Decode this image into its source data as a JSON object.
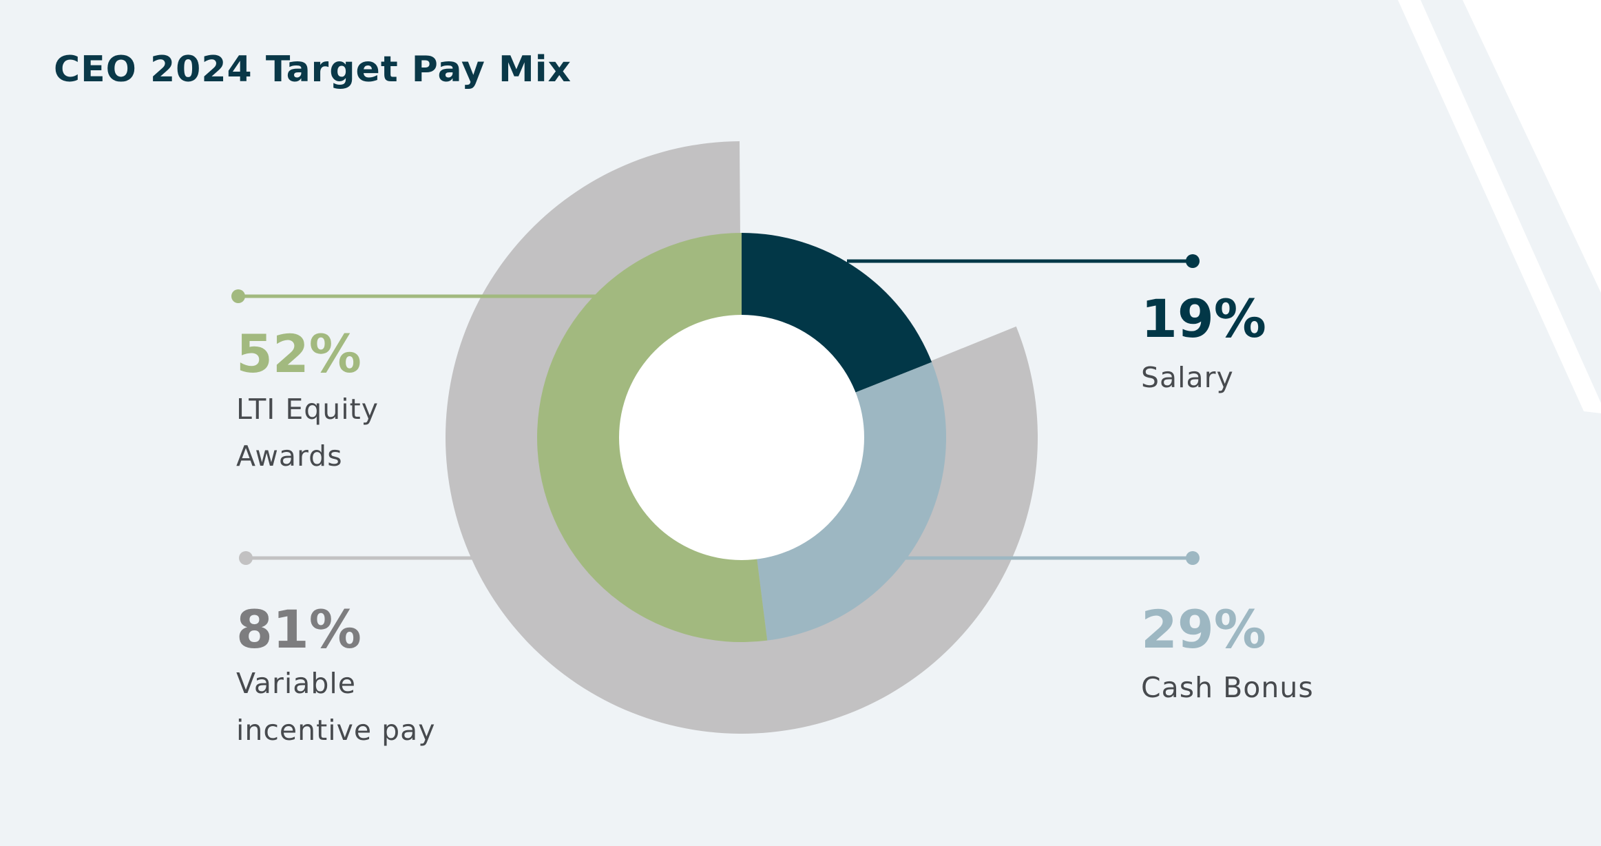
{
  "colors": {
    "background": "#eff3f6",
    "stripe": "#ffffff",
    "title": "#0a3848",
    "label_text": "#474a4e",
    "center_hole": "#ffffff"
  },
  "chart_data": {
    "type": "pie",
    "title": "CEO 2024 Target Pay Mix",
    "inner_ring": [
      {
        "key": "salary",
        "value": 19,
        "value_label": "19%",
        "label_lines": [
          "Salary"
        ],
        "color": "#023747"
      },
      {
        "key": "cash_bonus",
        "value": 29,
        "value_label": "29%",
        "label_lines": [
          "Cash Bonus"
        ],
        "color": "#9db7c2"
      },
      {
        "key": "lti",
        "value": 52,
        "value_label": "52%",
        "label_lines": [
          "LTI Equity",
          "Awards"
        ],
        "color": "#a2b97f"
      }
    ],
    "outer_ring": [
      {
        "key": "variable",
        "value": 81,
        "value_label": "81%",
        "label_lines": [
          "Variable",
          "incentive pay"
        ],
        "color": "#c2c1c2",
        "text_color": "#7d7d7f"
      }
    ]
  }
}
